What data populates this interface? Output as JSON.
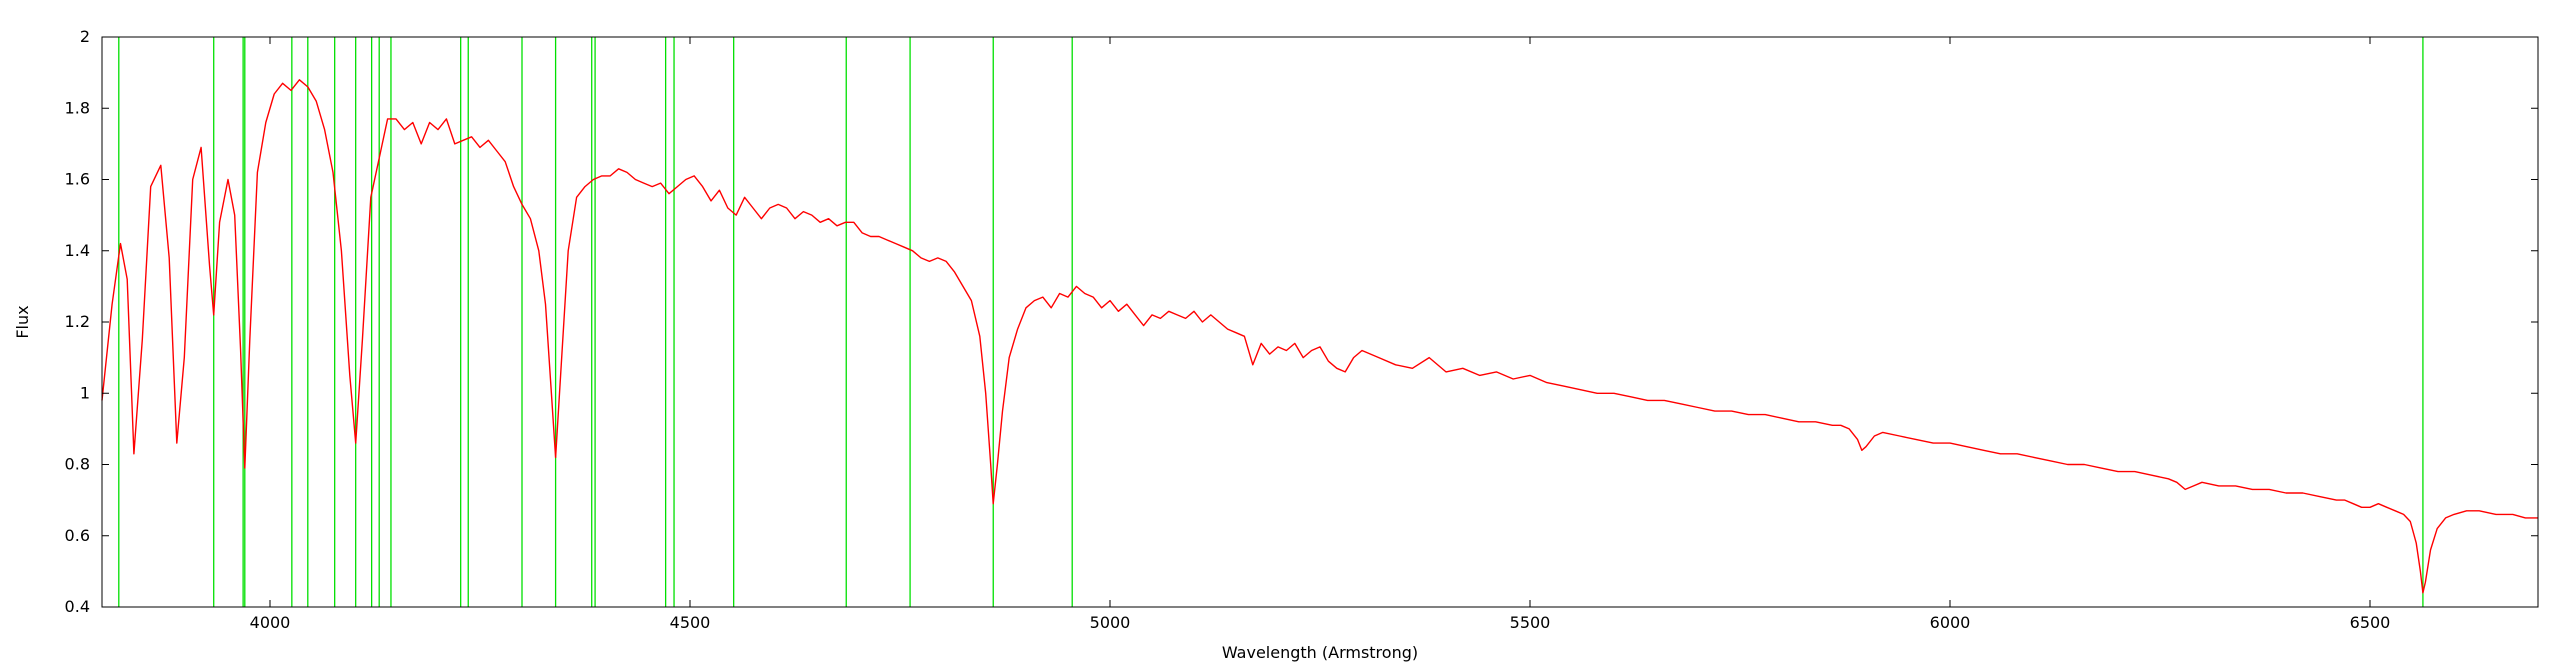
{
  "chart_data": {
    "type": "line",
    "title": "",
    "xlabel": "Wavelength (Armstrong)",
    "ylabel": "Flux",
    "xlim": [
      3800,
      6700
    ],
    "ylim": [
      0.4,
      2.0
    ],
    "x_ticks": [
      4000,
      4500,
      5000,
      5500,
      6000,
      6500
    ],
    "x_tick_labels": [
      "4000",
      "4500",
      "5000",
      "5500",
      "6000",
      "6500"
    ],
    "y_ticks": [
      0.4,
      0.6,
      0.8,
      1.0,
      1.2,
      1.4,
      1.6,
      1.8,
      2.0
    ],
    "y_tick_labels": [
      "0.4",
      "0.6",
      "0.8",
      "1",
      "1.2",
      "1.4",
      "1.6",
      "1.8",
      "2"
    ],
    "grid": false,
    "legend": "none",
    "colors": {
      "spectrum": "#ff0000",
      "lines": "#00e000",
      "axis": "#000000"
    },
    "spectral_lines": [
      3820,
      3933,
      3968,
      3970,
      4026,
      4045,
      4077,
      4102,
      4121,
      4130,
      4144,
      4227,
      4236,
      4300,
      4340,
      4383,
      4387,
      4471,
      4481,
      4552,
      4686,
      4762,
      4861,
      4955,
      6563
    ],
    "series": [
      {
        "color": "#ff0000",
        "x": [
          3800,
          3812,
          3822,
          3830,
          3838,
          3848,
          3858,
          3870,
          3880,
          3889,
          3898,
          3908,
          3918,
          3928,
          3933,
          3940,
          3950,
          3958,
          3965,
          3970,
          3976,
          3985,
          3995,
          4005,
          4015,
          4025,
          4035,
          4045,
          4055,
          4065,
          4075,
          4085,
          4095,
          4102,
          4110,
          4120,
          4130,
          4140,
          4150,
          4160,
          4170,
          4180,
          4190,
          4200,
          4210,
          4220,
          4230,
          4240,
          4250,
          4260,
          4270,
          4280,
          4290,
          4300,
          4310,
          4320,
          4328,
          4335,
          4340,
          4346,
          4355,
          4365,
          4375,
          4385,
          4395,
          4405,
          4415,
          4425,
          4435,
          4445,
          4455,
          4465,
          4475,
          4485,
          4495,
          4505,
          4515,
          4525,
          4535,
          4545,
          4555,
          4565,
          4575,
          4585,
          4595,
          4605,
          4615,
          4625,
          4635,
          4645,
          4655,
          4665,
          4675,
          4685,
          4695,
          4705,
          4715,
          4725,
          4735,
          4745,
          4755,
          4765,
          4775,
          4785,
          4795,
          4805,
          4815,
          4825,
          4835,
          4845,
          4852,
          4858,
          4861,
          4866,
          4872,
          4880,
          4890,
          4900,
          4910,
          4920,
          4930,
          4940,
          4950,
          4960,
          4970,
          4980,
          4990,
          5000,
          5010,
          5020,
          5030,
          5040,
          5050,
          5060,
          5070,
          5080,
          5090,
          5100,
          5110,
          5120,
          5130,
          5140,
          5150,
          5160,
          5170,
          5180,
          5190,
          5200,
          5210,
          5220,
          5230,
          5240,
          5250,
          5260,
          5270,
          5280,
          5290,
          5300,
          5320,
          5340,
          5360,
          5380,
          5400,
          5420,
          5440,
          5460,
          5480,
          5500,
          5520,
          5540,
          5560,
          5580,
          5600,
          5620,
          5640,
          5660,
          5680,
          5700,
          5720,
          5740,
          5760,
          5780,
          5800,
          5820,
          5840,
          5860,
          5870,
          5880,
          5890,
          5895,
          5900,
          5910,
          5920,
          5940,
          5960,
          5980,
          6000,
          6020,
          6040,
          6060,
          6080,
          6100,
          6120,
          6140,
          6160,
          6180,
          6200,
          6220,
          6240,
          6260,
          6270,
          6280,
          6290,
          6300,
          6320,
          6340,
          6360,
          6380,
          6400,
          6420,
          6440,
          6460,
          6470,
          6480,
          6490,
          6500,
          6510,
          6520,
          6530,
          6540,
          6548,
          6555,
          6560,
          6563,
          6566,
          6572,
          6580,
          6590,
          6600,
          6615,
          6630,
          6650,
          6670,
          6685,
          6700
        ],
        "y": [
          0.98,
          1.25,
          1.42,
          1.32,
          0.83,
          1.15,
          1.58,
          1.64,
          1.38,
          0.86,
          1.1,
          1.6,
          1.69,
          1.36,
          1.22,
          1.48,
          1.6,
          1.5,
          1.12,
          0.79,
          1.15,
          1.62,
          1.76,
          1.84,
          1.87,
          1.85,
          1.88,
          1.86,
          1.82,
          1.74,
          1.62,
          1.4,
          1.05,
          0.86,
          1.15,
          1.55,
          1.66,
          1.77,
          1.77,
          1.74,
          1.76,
          1.7,
          1.76,
          1.74,
          1.77,
          1.7,
          1.71,
          1.72,
          1.69,
          1.71,
          1.68,
          1.65,
          1.58,
          1.53,
          1.49,
          1.4,
          1.25,
          1.0,
          0.82,
          1.05,
          1.4,
          1.55,
          1.58,
          1.6,
          1.61,
          1.61,
          1.63,
          1.62,
          1.6,
          1.59,
          1.58,
          1.59,
          1.56,
          1.58,
          1.6,
          1.61,
          1.58,
          1.54,
          1.57,
          1.52,
          1.5,
          1.55,
          1.52,
          1.49,
          1.52,
          1.53,
          1.52,
          1.49,
          1.51,
          1.5,
          1.48,
          1.49,
          1.47,
          1.48,
          1.48,
          1.45,
          1.44,
          1.44,
          1.43,
          1.42,
          1.41,
          1.4,
          1.38,
          1.37,
          1.38,
          1.37,
          1.34,
          1.3,
          1.26,
          1.16,
          1.0,
          0.8,
          0.69,
          0.8,
          0.95,
          1.1,
          1.18,
          1.24,
          1.26,
          1.27,
          1.24,
          1.28,
          1.27,
          1.3,
          1.28,
          1.27,
          1.24,
          1.26,
          1.23,
          1.25,
          1.22,
          1.19,
          1.22,
          1.21,
          1.23,
          1.22,
          1.21,
          1.23,
          1.2,
          1.22,
          1.2,
          1.18,
          1.17,
          1.16,
          1.08,
          1.14,
          1.11,
          1.13,
          1.12,
          1.14,
          1.1,
          1.12,
          1.13,
          1.09,
          1.07,
          1.06,
          1.1,
          1.12,
          1.1,
          1.08,
          1.07,
          1.1,
          1.06,
          1.07,
          1.05,
          1.06,
          1.04,
          1.05,
          1.03,
          1.02,
          1.01,
          1.0,
          1.0,
          0.99,
          0.98,
          0.98,
          0.97,
          0.96,
          0.95,
          0.95,
          0.94,
          0.94,
          0.93,
          0.92,
          0.92,
          0.91,
          0.91,
          0.9,
          0.87,
          0.84,
          0.85,
          0.88,
          0.89,
          0.88,
          0.87,
          0.86,
          0.86,
          0.85,
          0.84,
          0.83,
          0.83,
          0.82,
          0.81,
          0.8,
          0.8,
          0.79,
          0.78,
          0.78,
          0.77,
          0.76,
          0.75,
          0.73,
          0.74,
          0.75,
          0.74,
          0.74,
          0.73,
          0.73,
          0.72,
          0.72,
          0.71,
          0.7,
          0.7,
          0.69,
          0.68,
          0.68,
          0.69,
          0.68,
          0.67,
          0.66,
          0.64,
          0.58,
          0.5,
          0.44,
          0.47,
          0.56,
          0.62,
          0.65,
          0.66,
          0.67,
          0.67,
          0.66,
          0.66,
          0.65,
          0.65
        ]
      }
    ]
  }
}
